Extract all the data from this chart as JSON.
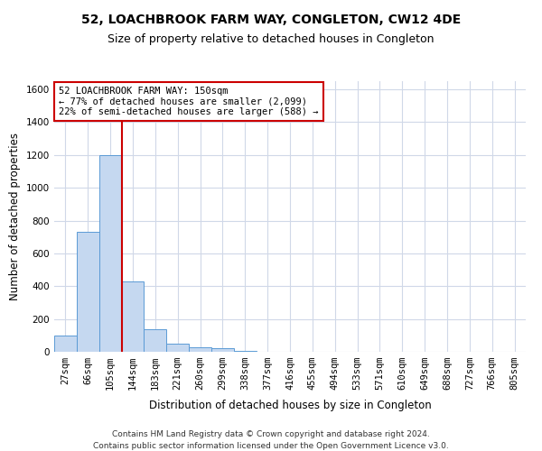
{
  "title": "52, LOACHBROOK FARM WAY, CONGLETON, CW12 4DE",
  "subtitle": "Size of property relative to detached houses in Congleton",
  "xlabel": "Distribution of detached houses by size in Congleton",
  "ylabel": "Number of detached properties",
  "footer1": "Contains HM Land Registry data © Crown copyright and database right 2024.",
  "footer2": "Contains public sector information licensed under the Open Government Licence v3.0.",
  "bin_labels": [
    "27sqm",
    "66sqm",
    "105sqm",
    "144sqm",
    "183sqm",
    "221sqm",
    "260sqm",
    "299sqm",
    "338sqm",
    "377sqm",
    "416sqm",
    "455sqm",
    "494sqm",
    "533sqm",
    "571sqm",
    "610sqm",
    "649sqm",
    "688sqm",
    "727sqm",
    "766sqm",
    "805sqm"
  ],
  "bar_values": [
    100,
    730,
    1200,
    430,
    140,
    50,
    30,
    20,
    5,
    0,
    0,
    0,
    0,
    0,
    0,
    0,
    0,
    0,
    0,
    0,
    0
  ],
  "bar_color": "#c5d8f0",
  "bar_edge_color": "#5b9bd5",
  "ylim": [
    0,
    1650
  ],
  "yticks": [
    0,
    200,
    400,
    600,
    800,
    1000,
    1200,
    1400,
    1600
  ],
  "vline_color": "#cc0000",
  "annotation_text": "52 LOACHBROOK FARM WAY: 150sqm\n← 77% of detached houses are smaller (2,099)\n22% of semi-detached houses are larger (588) →",
  "annotation_box_color": "#ffffff",
  "annotation_box_edge": "#cc0000",
  "title_fontsize": 10,
  "subtitle_fontsize": 9,
  "axis_label_fontsize": 8.5,
  "tick_fontsize": 7.5,
  "annotation_fontsize": 7.5,
  "footer_fontsize": 6.5,
  "background_color": "#ffffff",
  "grid_color": "#d0d8e8",
  "vline_x_index": 2.5
}
